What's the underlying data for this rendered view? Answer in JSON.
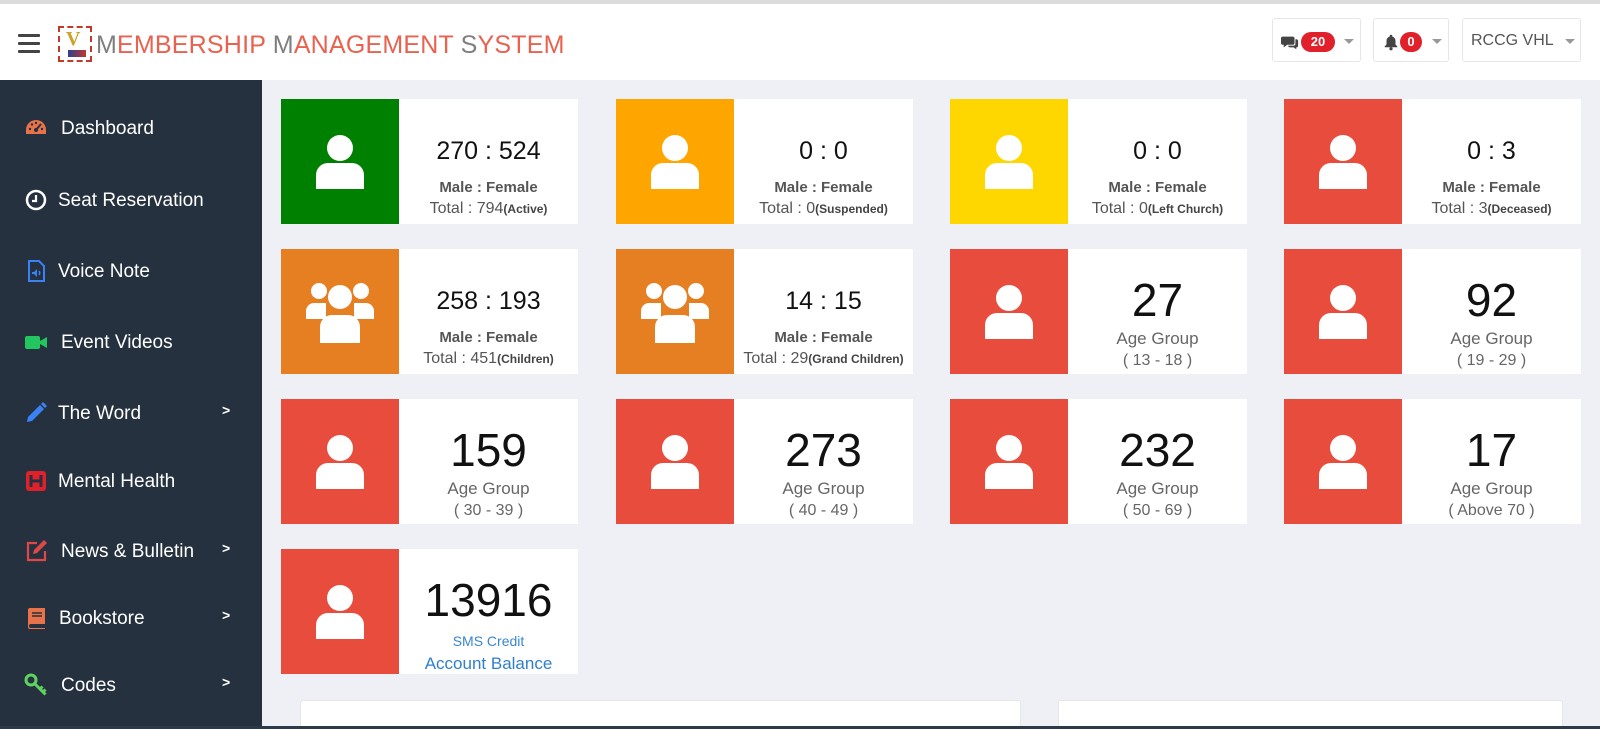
{
  "header": {
    "title_parts": [
      {
        "cap": "M",
        "rest": "EMBERSHIP "
      },
      {
        "cap": "M",
        "rest": "ANAGEMENT "
      },
      {
        "cap": "S",
        "rest": "YSTEM"
      }
    ],
    "messages_count": "20",
    "notifications_count": "0",
    "org_name": "RCCG VHL"
  },
  "sidebar": {
    "items": [
      {
        "label": "Dashboard",
        "icon": "tachometer-icon",
        "color": "#e8734a",
        "has_submenu": false
      },
      {
        "label": "Seat Reservation",
        "icon": "clock-icon",
        "color": "#ffffff",
        "has_submenu": false
      },
      {
        "label": "Voice Note",
        "icon": "audio-file-icon",
        "color": "#3b82f6",
        "has_submenu": false
      },
      {
        "label": "Event Videos",
        "icon": "video-camera-icon",
        "color": "#22c55e",
        "has_submenu": false
      },
      {
        "label": "The Word",
        "icon": "pencil-icon",
        "color": "#3b82f6",
        "has_submenu": true
      },
      {
        "label": "Mental Health",
        "icon": "hospital-icon",
        "color": "#e0202b",
        "has_submenu": false
      },
      {
        "label": "News & Bulletin",
        "icon": "edit-icon",
        "color": "#e04848",
        "has_submenu": true
      },
      {
        "label": "Bookstore",
        "icon": "book-icon",
        "color": "#e8734a",
        "has_submenu": true
      },
      {
        "label": "Codes",
        "icon": "key-icon",
        "color": "#5fd35f",
        "has_submenu": true
      }
    ],
    "arrow_glyph": ">"
  },
  "cards": [
    {
      "kind": "ratio",
      "icon": "user-icon",
      "color": "#008000",
      "ratio": "270 : 524",
      "sub": "Male : Female",
      "total": "Total : 794",
      "tag": "(Active)"
    },
    {
      "kind": "ratio",
      "icon": "user-icon",
      "color": "#ffa500",
      "ratio": "0 : 0",
      "sub": "Male : Female",
      "total": "Total : 0",
      "tag": "(Suspended)"
    },
    {
      "kind": "ratio",
      "icon": "user-icon",
      "color": "#ffd700",
      "ratio": "0 : 0",
      "sub": "Male : Female",
      "total": "Total : 0",
      "tag": "(Left Church)"
    },
    {
      "kind": "ratio",
      "icon": "user-icon",
      "color": "#e74c3c",
      "ratio": "0 : 3",
      "sub": "Male : Female",
      "total": "Total : 3",
      "tag": "(Deceased)"
    },
    {
      "kind": "ratio",
      "icon": "users-icon",
      "color": "#e67e22",
      "ratio": "258 : 193",
      "sub": "Male : Female",
      "total": "Total : 451",
      "tag": "(Children)"
    },
    {
      "kind": "ratio",
      "icon": "users-icon",
      "color": "#e67e22",
      "ratio": "14 : 15",
      "sub": "Male : Female",
      "total": "Total : 29",
      "tag": "(Grand Children)"
    },
    {
      "kind": "age",
      "icon": "user-icon",
      "color": "#e74c3c",
      "value": "27",
      "label": "Age Group",
      "range": "( 13 - 18 )"
    },
    {
      "kind": "age",
      "icon": "user-icon",
      "color": "#e74c3c",
      "value": "92",
      "label": "Age Group",
      "range": "( 19 - 29 )"
    },
    {
      "kind": "age",
      "icon": "user-icon",
      "color": "#e74c3c",
      "value": "159",
      "label": "Age Group",
      "range": "( 30 - 39 )"
    },
    {
      "kind": "age",
      "icon": "user-icon",
      "color": "#e74c3c",
      "value": "273",
      "label": "Age Group",
      "range": "( 40 - 49 )"
    },
    {
      "kind": "age",
      "icon": "user-icon",
      "color": "#e74c3c",
      "value": "232",
      "label": "Age Group",
      "range": "( 50 - 69 )"
    },
    {
      "kind": "age",
      "icon": "user-icon",
      "color": "#e74c3c",
      "value": "17",
      "label": "Age Group",
      "range": "( Above 70 )"
    },
    {
      "kind": "sms",
      "icon": "user-icon",
      "color": "#e74c3c",
      "value": "13916",
      "label": "SMS Credit",
      "range": "Account Balance"
    }
  ]
}
